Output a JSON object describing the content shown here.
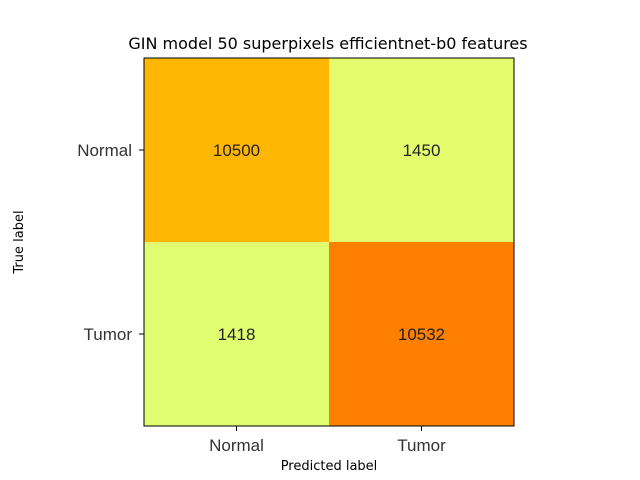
{
  "chart_data": {
    "type": "heatmap",
    "title": "GIN model 50 superpixels efficientnet-b0 features",
    "xlabel": "Predicted label",
    "ylabel": "True label",
    "x_categories": [
      "Normal",
      "Tumor"
    ],
    "y_categories": [
      "Normal",
      "Tumor"
    ],
    "values": [
      [
        10500,
        1450
      ],
      [
        1418,
        10532
      ]
    ],
    "cell_labels": [
      [
        "10500",
        "1450"
      ],
      [
        "1418",
        "10532"
      ]
    ],
    "cell_colors": [
      [
        "#ffb703",
        "#e4fb6b"
      ],
      [
        "#e0fd72",
        "#ff7f00"
      ]
    ],
    "colormap": "Wistia",
    "grid": false
  }
}
